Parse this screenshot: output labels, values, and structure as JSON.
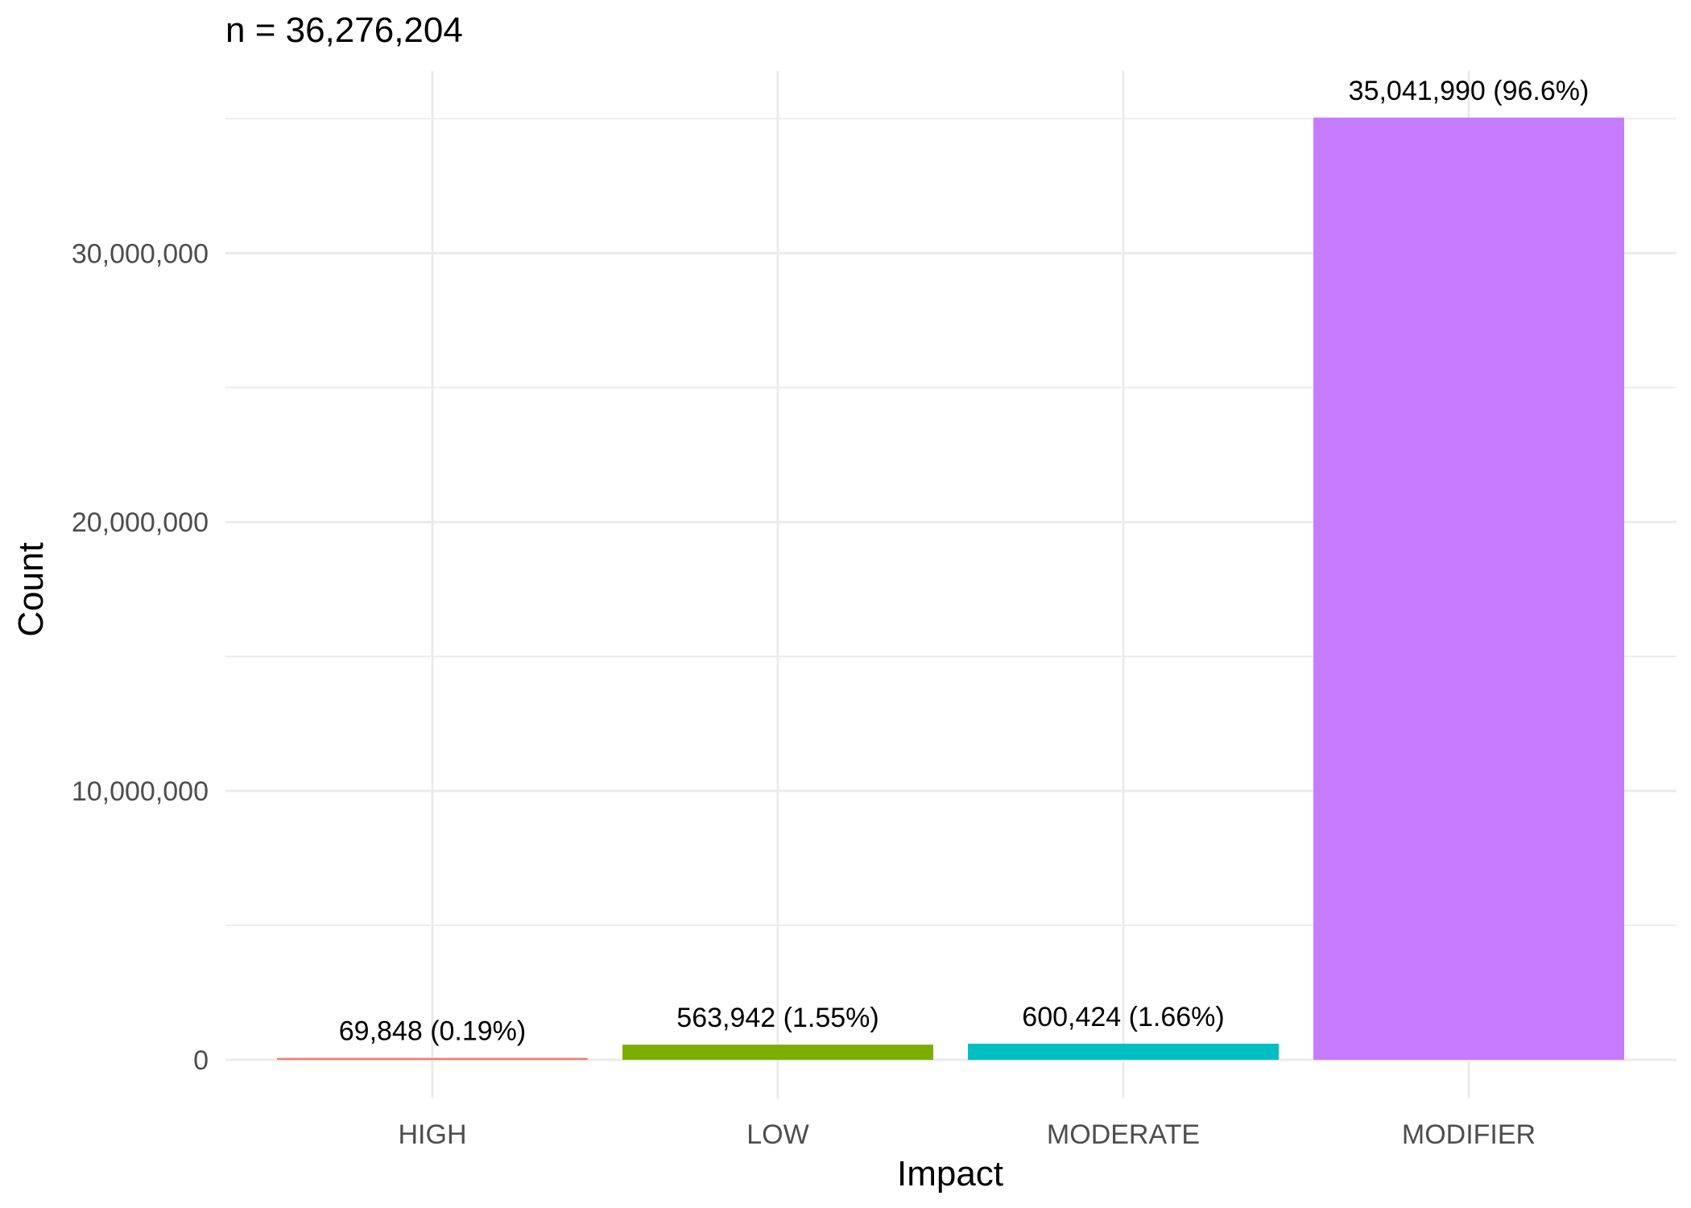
{
  "chart_data": {
    "type": "bar",
    "subtitle": "n = 36,276,204",
    "xlabel": "Impact",
    "ylabel": "Count",
    "categories": [
      "HIGH",
      "LOW",
      "MODERATE",
      "MODIFIER"
    ],
    "values": [
      69848,
      563942,
      600424,
      35041990
    ],
    "data_labels": [
      "69,848 (0.19%)",
      "563,942 (1.55%)",
      "600,424 (1.66%)",
      "35,041,990 (96.6%)"
    ],
    "colors": [
      "#F8766D",
      "#7CAE00",
      "#00BFC4",
      "#C77CFF"
    ],
    "ylim": [
      0,
      36800000
    ],
    "yticks": [
      0,
      10000000,
      20000000,
      30000000
    ],
    "ytick_labels": [
      "0",
      "10,000,000",
      "20,000,000",
      "30,000,000"
    ],
    "grid": true,
    "legend": "none"
  }
}
